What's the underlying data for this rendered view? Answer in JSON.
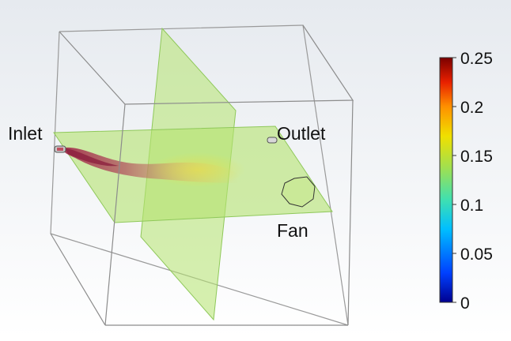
{
  "labels": {
    "inlet": "Inlet",
    "outlet": "Outlet",
    "fan": "Fan"
  },
  "colorbar": {
    "ticks": [
      "0.25",
      "0.2",
      "0.15",
      "0.1",
      "0.05",
      "0"
    ],
    "tick_values": [
      0.25,
      0.2,
      0.15,
      0.1,
      0.05,
      0
    ],
    "range": [
      0,
      0.25
    ],
    "colormap": [
      "#00008f",
      "#0040ff",
      "#00bfff",
      "#40e0b0",
      "#a0e050",
      "#f0e000",
      "#ff9000",
      "#e82000",
      "#7a0000"
    ]
  },
  "colors": {
    "background_top": "#e6eaef",
    "background_bottom": "#ffffff",
    "slice_plane": "#a8e06a",
    "box_edges": "#8c8c8c",
    "flow_plume": "#b0405a"
  }
}
